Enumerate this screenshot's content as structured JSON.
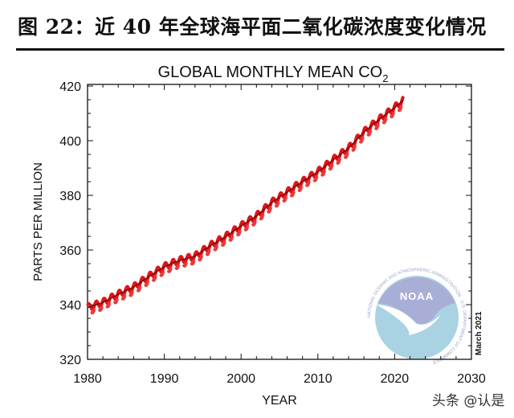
{
  "heading": "图 22：近 40 年全球海平面二氧化碳浓度变化情况",
  "watermark": "头条 @认是",
  "chart_data": {
    "type": "line",
    "title": "GLOBAL MONTHLY MEAN CO",
    "title_subscript": "2",
    "xlabel": "YEAR",
    "ylabel": "PARTS PER MILLION",
    "xlim": [
      1980,
      2030
    ],
    "ylim": [
      320,
      420.6
    ],
    "xticks": [
      1980,
      1990,
      2000,
      2010,
      2020,
      2030
    ],
    "yticks": [
      320,
      340,
      360,
      380,
      400,
      420
    ],
    "grid": false,
    "annotation": "March 2021",
    "logo": "NOAA",
    "logo_ring_text": "NATIONAL OCEANIC AND ATMOSPHERIC ADMINISTRATION · U.S. DEPARTMENT OF COMMERCE",
    "colors": {
      "monthly": "#e0141a",
      "trend": "#7a0000",
      "markers": "#e83a3a",
      "logo_top": "#a9aed6",
      "logo_bottom": "#a9d2e3"
    },
    "x": [
      1980,
      1982,
      1984,
      1986,
      1988,
      1990,
      1992,
      1994,
      1996,
      1998,
      2000,
      2002,
      2004,
      2006,
      2008,
      2010,
      2012,
      2014,
      2016,
      2018,
      2020,
      2021.2
    ],
    "series": [
      {
        "name": "",
        "values": [
          338.9,
          340.8,
          343.8,
          346.4,
          350.3,
          353.9,
          356.2,
          357.7,
          361.6,
          364.9,
          368.8,
          372.4,
          377.4,
          381.2,
          385.0,
          388.6,
          393.0,
          397.2,
          403.2,
          407.8,
          412.1,
          415.0
        ]
      }
    ],
    "seasonal_amplitude": 1.3
  }
}
